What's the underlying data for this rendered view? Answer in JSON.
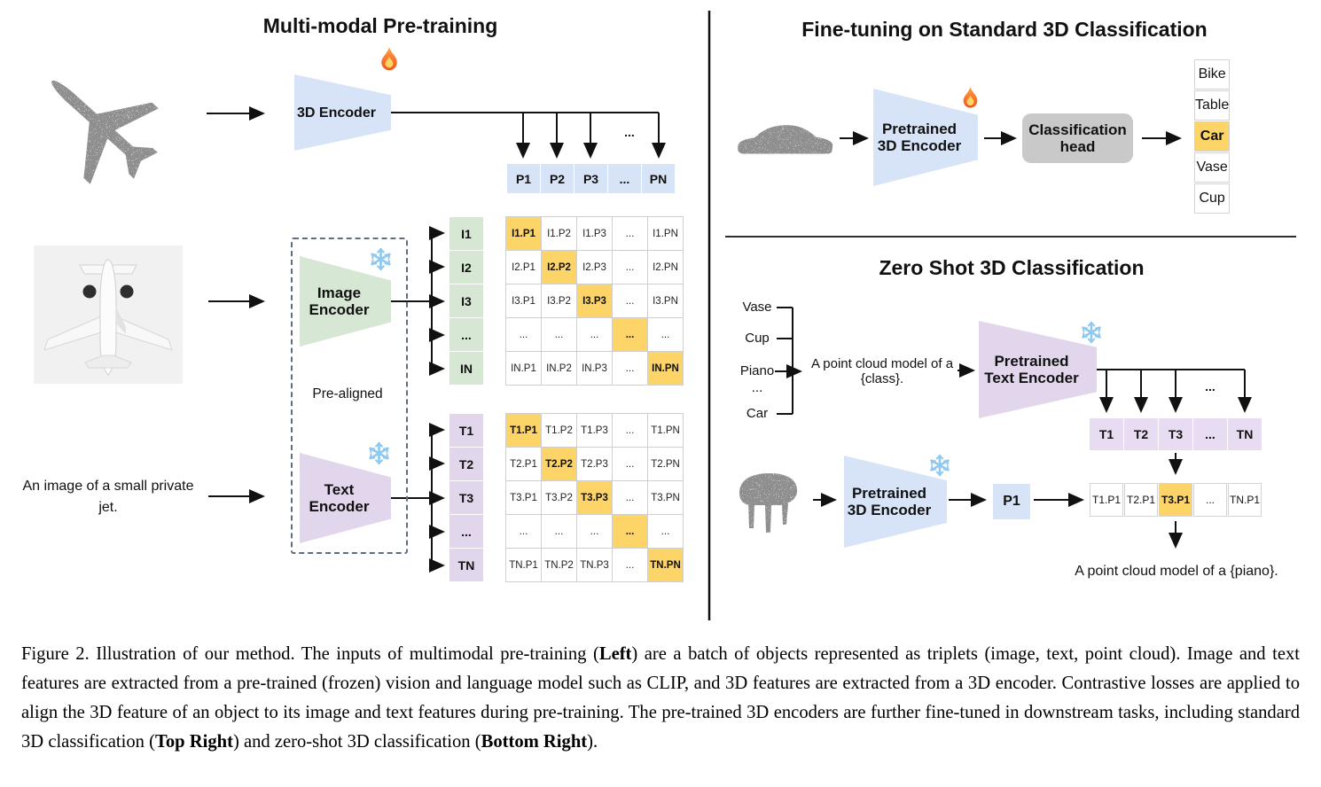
{
  "colors": {
    "blue": "#d7e4f7",
    "green": "#d6e8d4",
    "purple": "#e2d6ec",
    "purple_light": "#e7dcf1",
    "orange": "#fcd468",
    "gray_head": "#c9c9c9"
  },
  "left": {
    "title": "Multi-modal Pre-training",
    "encoder3d_label": "3D Encoder",
    "p_row": [
      "P1",
      "P2",
      "P3",
      "...",
      "PN"
    ],
    "fan_ellipsis": "...",
    "image_encoder_label": "Image Encoder",
    "text_encoder_label": "Text Encoder",
    "prealigned_label": "Pre-aligned",
    "image_caption": "An image of a small private jet.",
    "i_labels": [
      "I1",
      "I2",
      "I3",
      "...",
      "IN"
    ],
    "i_matrix": [
      [
        "I1.P1",
        "I1.P2",
        "I1.P3",
        "...",
        "I1.PN"
      ],
      [
        "I2.P1",
        "I2.P2",
        "I2.P3",
        "...",
        "I2.PN"
      ],
      [
        "I3.P1",
        "I3.P2",
        "I3.P3",
        "...",
        "I3.PN"
      ],
      [
        "...",
        "...",
        "...",
        "...",
        "..."
      ],
      [
        "IN.P1",
        "IN.P2",
        "IN.P3",
        "...",
        "IN.PN"
      ]
    ],
    "t_labels": [
      "T1",
      "T2",
      "T3",
      "...",
      "TN"
    ],
    "t_matrix": [
      [
        "T1.P1",
        "T1.P2",
        "T1.P3",
        "...",
        "T1.PN"
      ],
      [
        "T2.P1",
        "T2.P2",
        "T2.P3",
        "...",
        "T2.PN"
      ],
      [
        "T3.P1",
        "T3.P2",
        "T3.P3",
        "...",
        "T3.PN"
      ],
      [
        "...",
        "...",
        "...",
        "...",
        "..."
      ],
      [
        "TN.P1",
        "TN.P2",
        "TN.P3",
        "...",
        "TN.PN"
      ]
    ],
    "point_cloud_name": "airplane-point-cloud",
    "photo_name": "private-jet-photo"
  },
  "top_right": {
    "title": "Fine-tuning on Standard 3D Classification",
    "encoder_label": "Pretrained 3D Encoder",
    "head_label": "Classification head",
    "classes": [
      "Bike",
      "Table",
      "Car",
      "Vase",
      "Cup"
    ],
    "highlight_index": 2,
    "point_cloud_name": "car-point-cloud"
  },
  "bottom_right": {
    "title": "Zero Shot 3D Classification",
    "class_list": [
      "Vase",
      "Cup",
      "Piano",
      "...",
      "Car"
    ],
    "prompt": "A point cloud model of a {class}.",
    "text_encoder_label": "Pretrained Text Encoder",
    "t_row": [
      "T1",
      "T2",
      "T3",
      "...",
      "TN"
    ],
    "fan_ellipsis": "...",
    "encoder3d_label": "Pretrained 3D Encoder",
    "p1_label": "P1",
    "result_row": [
      "T1.P1",
      "T2.P1",
      "T3.P1",
      "...",
      "TN.P1"
    ],
    "highlight_index": 2,
    "output_text": "A point cloud model of a {piano}.",
    "point_cloud_name": "piano-point-cloud"
  },
  "icons": {
    "trainable": "fire-icon",
    "frozen": "snowflake-icon"
  },
  "caption_segments": [
    {
      "t": "Figure 2. Illustration of our method. The inputs of multimodal pre-training ("
    },
    {
      "t": "Left",
      "b": true
    },
    {
      "t": ") are a batch of objects represented as triplets (image, text, point cloud).  Image and text features are extracted from a pre-trained (frozen) vision and language model such as CLIP, and 3D features are extracted from a 3D encoder.  Contrastive losses are applied to align the 3D feature of an object to its image and text features during pre-training.  The pre-trained 3D encoders are further fine-tuned in downstream tasks, including standard 3D classification ("
    },
    {
      "t": "Top Right",
      "b": true
    },
    {
      "t": ") and zero-shot 3D classification ("
    },
    {
      "t": "Bottom Right",
      "b": true
    },
    {
      "t": ")."
    }
  ]
}
